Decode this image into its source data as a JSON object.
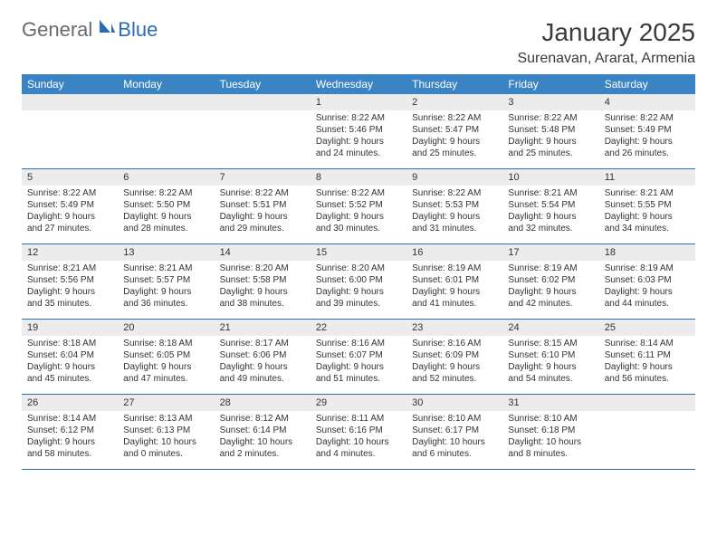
{
  "logo": {
    "general": "General",
    "blue": "Blue"
  },
  "title": "January 2025",
  "location": "Surenavan, Ararat, Armenia",
  "header_bg": "#3b84c4",
  "day_names": [
    "Sunday",
    "Monday",
    "Tuesday",
    "Wednesday",
    "Thursday",
    "Friday",
    "Saturday"
  ],
  "weeks": [
    [
      {
        "num": "",
        "sr": "",
        "ss": "",
        "dl1": "",
        "dl2": ""
      },
      {
        "num": "",
        "sr": "",
        "ss": "",
        "dl1": "",
        "dl2": ""
      },
      {
        "num": "",
        "sr": "",
        "ss": "",
        "dl1": "",
        "dl2": ""
      },
      {
        "num": "1",
        "sr": "Sunrise: 8:22 AM",
        "ss": "Sunset: 5:46 PM",
        "dl1": "Daylight: 9 hours",
        "dl2": "and 24 minutes."
      },
      {
        "num": "2",
        "sr": "Sunrise: 8:22 AM",
        "ss": "Sunset: 5:47 PM",
        "dl1": "Daylight: 9 hours",
        "dl2": "and 25 minutes."
      },
      {
        "num": "3",
        "sr": "Sunrise: 8:22 AM",
        "ss": "Sunset: 5:48 PM",
        "dl1": "Daylight: 9 hours",
        "dl2": "and 25 minutes."
      },
      {
        "num": "4",
        "sr": "Sunrise: 8:22 AM",
        "ss": "Sunset: 5:49 PM",
        "dl1": "Daylight: 9 hours",
        "dl2": "and 26 minutes."
      }
    ],
    [
      {
        "num": "5",
        "sr": "Sunrise: 8:22 AM",
        "ss": "Sunset: 5:49 PM",
        "dl1": "Daylight: 9 hours",
        "dl2": "and 27 minutes."
      },
      {
        "num": "6",
        "sr": "Sunrise: 8:22 AM",
        "ss": "Sunset: 5:50 PM",
        "dl1": "Daylight: 9 hours",
        "dl2": "and 28 minutes."
      },
      {
        "num": "7",
        "sr": "Sunrise: 8:22 AM",
        "ss": "Sunset: 5:51 PM",
        "dl1": "Daylight: 9 hours",
        "dl2": "and 29 minutes."
      },
      {
        "num": "8",
        "sr": "Sunrise: 8:22 AM",
        "ss": "Sunset: 5:52 PM",
        "dl1": "Daylight: 9 hours",
        "dl2": "and 30 minutes."
      },
      {
        "num": "9",
        "sr": "Sunrise: 8:22 AM",
        "ss": "Sunset: 5:53 PM",
        "dl1": "Daylight: 9 hours",
        "dl2": "and 31 minutes."
      },
      {
        "num": "10",
        "sr": "Sunrise: 8:21 AM",
        "ss": "Sunset: 5:54 PM",
        "dl1": "Daylight: 9 hours",
        "dl2": "and 32 minutes."
      },
      {
        "num": "11",
        "sr": "Sunrise: 8:21 AM",
        "ss": "Sunset: 5:55 PM",
        "dl1": "Daylight: 9 hours",
        "dl2": "and 34 minutes."
      }
    ],
    [
      {
        "num": "12",
        "sr": "Sunrise: 8:21 AM",
        "ss": "Sunset: 5:56 PM",
        "dl1": "Daylight: 9 hours",
        "dl2": "and 35 minutes."
      },
      {
        "num": "13",
        "sr": "Sunrise: 8:21 AM",
        "ss": "Sunset: 5:57 PM",
        "dl1": "Daylight: 9 hours",
        "dl2": "and 36 minutes."
      },
      {
        "num": "14",
        "sr": "Sunrise: 8:20 AM",
        "ss": "Sunset: 5:58 PM",
        "dl1": "Daylight: 9 hours",
        "dl2": "and 38 minutes."
      },
      {
        "num": "15",
        "sr": "Sunrise: 8:20 AM",
        "ss": "Sunset: 6:00 PM",
        "dl1": "Daylight: 9 hours",
        "dl2": "and 39 minutes."
      },
      {
        "num": "16",
        "sr": "Sunrise: 8:19 AM",
        "ss": "Sunset: 6:01 PM",
        "dl1": "Daylight: 9 hours",
        "dl2": "and 41 minutes."
      },
      {
        "num": "17",
        "sr": "Sunrise: 8:19 AM",
        "ss": "Sunset: 6:02 PM",
        "dl1": "Daylight: 9 hours",
        "dl2": "and 42 minutes."
      },
      {
        "num": "18",
        "sr": "Sunrise: 8:19 AM",
        "ss": "Sunset: 6:03 PM",
        "dl1": "Daylight: 9 hours",
        "dl2": "and 44 minutes."
      }
    ],
    [
      {
        "num": "19",
        "sr": "Sunrise: 8:18 AM",
        "ss": "Sunset: 6:04 PM",
        "dl1": "Daylight: 9 hours",
        "dl2": "and 45 minutes."
      },
      {
        "num": "20",
        "sr": "Sunrise: 8:18 AM",
        "ss": "Sunset: 6:05 PM",
        "dl1": "Daylight: 9 hours",
        "dl2": "and 47 minutes."
      },
      {
        "num": "21",
        "sr": "Sunrise: 8:17 AM",
        "ss": "Sunset: 6:06 PM",
        "dl1": "Daylight: 9 hours",
        "dl2": "and 49 minutes."
      },
      {
        "num": "22",
        "sr": "Sunrise: 8:16 AM",
        "ss": "Sunset: 6:07 PM",
        "dl1": "Daylight: 9 hours",
        "dl2": "and 51 minutes."
      },
      {
        "num": "23",
        "sr": "Sunrise: 8:16 AM",
        "ss": "Sunset: 6:09 PM",
        "dl1": "Daylight: 9 hours",
        "dl2": "and 52 minutes."
      },
      {
        "num": "24",
        "sr": "Sunrise: 8:15 AM",
        "ss": "Sunset: 6:10 PM",
        "dl1": "Daylight: 9 hours",
        "dl2": "and 54 minutes."
      },
      {
        "num": "25",
        "sr": "Sunrise: 8:14 AM",
        "ss": "Sunset: 6:11 PM",
        "dl1": "Daylight: 9 hours",
        "dl2": "and 56 minutes."
      }
    ],
    [
      {
        "num": "26",
        "sr": "Sunrise: 8:14 AM",
        "ss": "Sunset: 6:12 PM",
        "dl1": "Daylight: 9 hours",
        "dl2": "and 58 minutes."
      },
      {
        "num": "27",
        "sr": "Sunrise: 8:13 AM",
        "ss": "Sunset: 6:13 PM",
        "dl1": "Daylight: 10 hours",
        "dl2": "and 0 minutes."
      },
      {
        "num": "28",
        "sr": "Sunrise: 8:12 AM",
        "ss": "Sunset: 6:14 PM",
        "dl1": "Daylight: 10 hours",
        "dl2": "and 2 minutes."
      },
      {
        "num": "29",
        "sr": "Sunrise: 8:11 AM",
        "ss": "Sunset: 6:16 PM",
        "dl1": "Daylight: 10 hours",
        "dl2": "and 4 minutes."
      },
      {
        "num": "30",
        "sr": "Sunrise: 8:10 AM",
        "ss": "Sunset: 6:17 PM",
        "dl1": "Daylight: 10 hours",
        "dl2": "and 6 minutes."
      },
      {
        "num": "31",
        "sr": "Sunrise: 8:10 AM",
        "ss": "Sunset: 6:18 PM",
        "dl1": "Daylight: 10 hours",
        "dl2": "and 8 minutes."
      },
      {
        "num": "",
        "sr": "",
        "ss": "",
        "dl1": "",
        "dl2": ""
      }
    ]
  ]
}
